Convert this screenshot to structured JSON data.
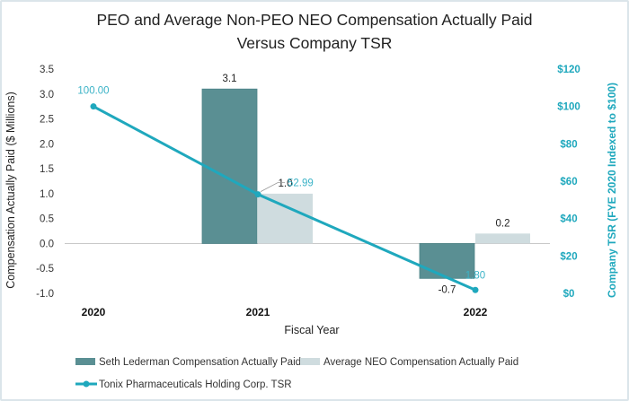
{
  "chart_data": {
    "type": "bar",
    "title_lines": [
      "PEO and Average Non-PEO NEO Compensation Actually Paid",
      "Versus Company TSR"
    ],
    "xlabel": "Fiscal Year",
    "ylabel": "Compensation Actually Paid ($ Millions)",
    "y2label": "Company TSR (FYE 2020 Indexed to $100)",
    "categories": [
      "2020",
      "2021",
      "2022"
    ],
    "ylim": [
      -1.0,
      3.5
    ],
    "yticks": [
      3.5,
      3.0,
      2.5,
      2.0,
      1.5,
      1.0,
      0.5,
      0.0,
      -0.5,
      -1.0
    ],
    "ytick_labels": [
      "3.5",
      "3.0",
      "2.5",
      "2.0",
      "1.5",
      "1.0",
      "0.5",
      "0.0",
      "-0.5",
      "-1.0"
    ],
    "y2lim": [
      0,
      120
    ],
    "y2ticks": [
      120,
      100,
      80,
      60,
      40,
      20,
      0
    ],
    "y2tick_labels": [
      "$120",
      "$100",
      "$80",
      "$60",
      "$40",
      "$20",
      "$0"
    ],
    "series": [
      {
        "name": "Seth Lederman Compensation Actually Paid",
        "type": "bar",
        "color": "#5a8f93",
        "values": [
          null,
          3.1,
          -0.7
        ],
        "labels": [
          "",
          "3.1",
          "-0.7"
        ]
      },
      {
        "name": "Average NEO Compensation Actually Paid",
        "type": "bar",
        "color": "#cfdcdf",
        "values": [
          null,
          1.0,
          0.2
        ],
        "labels": [
          "",
          "1.0",
          "0.2"
        ]
      },
      {
        "name": "Tonix Pharmaceuticals Holding Corp. TSR",
        "type": "line",
        "axis": "right",
        "color": "#1fa8bd",
        "values": [
          100.0,
          52.99,
          1.8
        ],
        "labels": [
          "100.00",
          "52.99",
          "1.80"
        ]
      }
    ],
    "legend": "bottom"
  }
}
